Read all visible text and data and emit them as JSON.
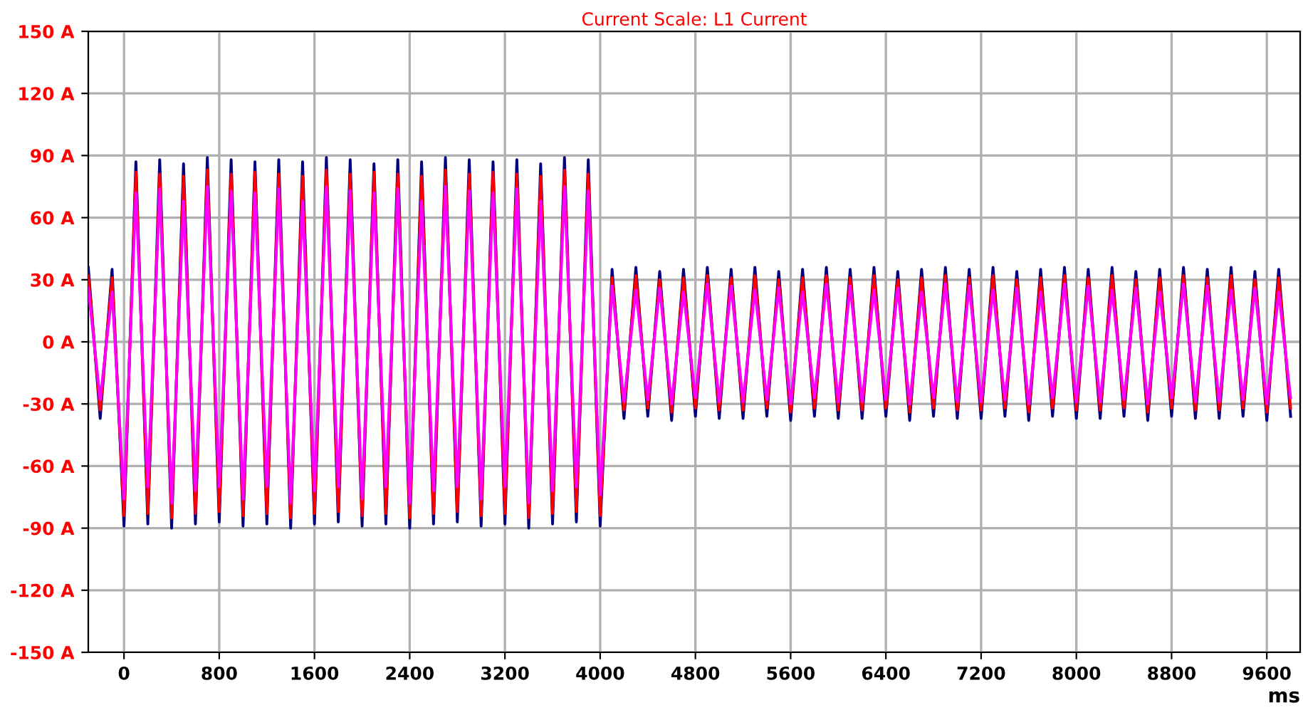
{
  "chart_data": {
    "type": "line",
    "title": "Current Scale: L1 Current",
    "xlabel": "ms",
    "x": [
      -300,
      -200,
      -100,
      0,
      100,
      200,
      300,
      400,
      500,
      600,
      700,
      800,
      900,
      1000,
      1100,
      1200,
      1300,
      1400,
      1500,
      1600,
      1700,
      1800,
      1900,
      2000,
      2100,
      2200,
      2300,
      2400,
      2500,
      2600,
      2700,
      2800,
      2900,
      3000,
      3100,
      3200,
      3300,
      3400,
      3500,
      3600,
      3700,
      3800,
      3900,
      4000,
      4100,
      4200,
      4300,
      4400,
      4500,
      4600,
      4700,
      4800,
      4900,
      5000,
      5100,
      5200,
      5300,
      5400,
      5500,
      5600,
      5700,
      5800,
      5900,
      6000,
      6100,
      6200,
      6300,
      6400,
      6500,
      6600,
      6700,
      6800,
      6900,
      7000,
      7100,
      7200,
      7300,
      7400,
      7500,
      7600,
      7700,
      7800,
      7900,
      8000,
      8100,
      8200,
      8300,
      8400,
      8500,
      8600,
      8700,
      8800,
      8900,
      9000,
      9100,
      9200,
      9300,
      9400,
      9500,
      9600,
      9700,
      9800
    ],
    "series": [
      {
        "color": "#000080",
        "values": [
          36,
          -37,
          35,
          -89,
          87,
          -88,
          88,
          -90,
          86,
          -88,
          89,
          -87,
          88,
          -89,
          87,
          -88,
          88,
          -90,
          87,
          -88,
          89,
          -87,
          88,
          -89,
          86,
          -88,
          88,
          -90,
          87,
          -88,
          89,
          -87,
          88,
          -89,
          87,
          -88,
          88,
          -90,
          86,
          -88,
          89,
          -87,
          88,
          -89,
          35,
          -37,
          36,
          -36,
          34,
          -38,
          35,
          -36,
          36,
          -37,
          35,
          -37,
          36,
          -36,
          34,
          -38,
          35,
          -36,
          36,
          -37,
          35,
          -37,
          36,
          -36,
          34,
          -38,
          35,
          -36,
          36,
          -37,
          35,
          -37,
          36,
          -36,
          34,
          -38,
          35,
          -36,
          36,
          -37,
          35,
          -37,
          36,
          -36,
          34,
          -38,
          35,
          -36,
          36,
          -37,
          35,
          -37,
          36,
          -36,
          34,
          -38,
          35,
          -36
        ]
      },
      {
        "color": "#ff0000",
        "values": [
          32,
          -33,
          31,
          -84,
          82,
          -83,
          81,
          -85,
          80,
          -83,
          83,
          -82,
          81,
          -84,
          82,
          -83,
          81,
          -85,
          80,
          -83,
          83,
          -82,
          81,
          -84,
          82,
          -83,
          81,
          -85,
          80,
          -83,
          83,
          -82,
          81,
          -84,
          82,
          -83,
          81,
          -85,
          80,
          -83,
          83,
          -82,
          81,
          -84,
          31,
          -33,
          32,
          -32,
          30,
          -34,
          31,
          -32,
          32,
          -33,
          31,
          -33,
          32,
          -32,
          30,
          -34,
          31,
          -32,
          32,
          -33,
          31,
          -33,
          32,
          -32,
          30,
          -34,
          31,
          -32,
          32,
          -33,
          31,
          -33,
          32,
          -32,
          30,
          -34,
          31,
          -32,
          32,
          -33,
          31,
          -33,
          32,
          -32,
          30,
          -34,
          31,
          -32,
          32,
          -33,
          31,
          -33,
          32,
          -32,
          30,
          -34,
          31,
          -32
        ]
      },
      {
        "color": "#ff00ff",
        "values": [
          26,
          -28,
          24,
          -76,
          72,
          -70,
          74,
          -78,
          68,
          -72,
          75,
          -70,
          73,
          -76,
          72,
          -70,
          74,
          -78,
          68,
          -72,
          75,
          -70,
          73,
          -76,
          72,
          -70,
          74,
          -78,
          68,
          -72,
          75,
          -70,
          73,
          -76,
          72,
          -70,
          74,
          -78,
          68,
          -72,
          75,
          -70,
          73,
          -74,
          27,
          -29,
          25,
          -28,
          26,
          -30,
          24,
          -27,
          28,
          -29,
          27,
          -29,
          25,
          -28,
          26,
          -30,
          24,
          -27,
          28,
          -29,
          27,
          -29,
          25,
          -28,
          26,
          -30,
          24,
          -27,
          28,
          -29,
          27,
          -29,
          25,
          -28,
          26,
          -30,
          24,
          -27,
          28,
          -29,
          27,
          -29,
          25,
          -28,
          26,
          -30,
          24,
          -27,
          28,
          -29,
          27,
          -29,
          25,
          -28,
          26,
          -30,
          24,
          -27
        ]
      }
    ],
    "xlim": [
      -300,
      9880
    ],
    "xticks": [
      0,
      800,
      1600,
      2400,
      3200,
      4000,
      4800,
      5600,
      6400,
      7200,
      8000,
      8800,
      9600
    ],
    "ylim": [
      -150,
      150
    ],
    "yticks": [
      {
        "value": 150,
        "label": "150 A"
      },
      {
        "value": 120,
        "label": "120 A"
      },
      {
        "value": 90,
        "label": "90 A"
      },
      {
        "value": 60,
        "label": "60 A"
      },
      {
        "value": 30,
        "label": "30 A"
      },
      {
        "value": 0,
        "label": "0 A"
      },
      {
        "value": -30,
        "label": "-30 A"
      },
      {
        "value": -60,
        "label": "-60 A"
      },
      {
        "value": -90,
        "label": "-90 A"
      },
      {
        "value": -120,
        "label": "-120 A"
      },
      {
        "value": -150,
        "label": "-150 A"
      }
    ],
    "grid": true,
    "marker": "none",
    "line_style": "solid"
  }
}
